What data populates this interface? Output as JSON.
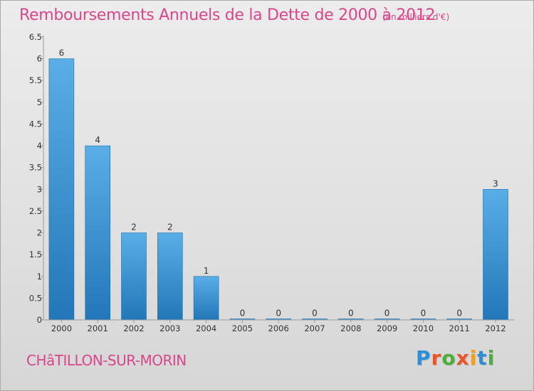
{
  "title": "Remboursements Annuels de la Dette de 2000 à 2012",
  "subtitle": "(en milliers d'€)",
  "commune": "CHâTILLON-SUR-MORIN",
  "brand": {
    "text": "Proxiti",
    "letter_colors": [
      "#2a8fd8",
      "#e8572a",
      "#4caf3a",
      "#e8572a",
      "#f0a020",
      "#2a8fd8",
      "#4caf3a"
    ]
  },
  "colors": {
    "bar_top": "#5aaee6",
    "bar_bottom": "#2277b8",
    "text": "#333333",
    "accent": "#d9468c"
  },
  "chart_data": {
    "type": "bar",
    "categories": [
      "2000",
      "2001",
      "2002",
      "2003",
      "2004",
      "2005",
      "2006",
      "2007",
      "2008",
      "2009",
      "2010",
      "2011",
      "2012"
    ],
    "values": [
      6,
      4,
      2,
      2,
      1,
      0,
      0,
      0,
      0,
      0,
      0,
      0,
      3
    ],
    "data_labels": [
      "6",
      "4",
      "2",
      "2",
      "1",
      "0",
      "0",
      "0",
      "0",
      "0",
      "0",
      "0",
      "3"
    ],
    "yticks": [
      "0",
      "0.5",
      "1",
      "1.5",
      "2",
      "2.5",
      "3",
      "3.5",
      "4",
      "4.5",
      "5",
      "5.5",
      "6",
      "6.5"
    ],
    "ylim": [
      0,
      6.5
    ],
    "xlabel": "",
    "ylabel": "",
    "grid": false,
    "legend": "none"
  }
}
